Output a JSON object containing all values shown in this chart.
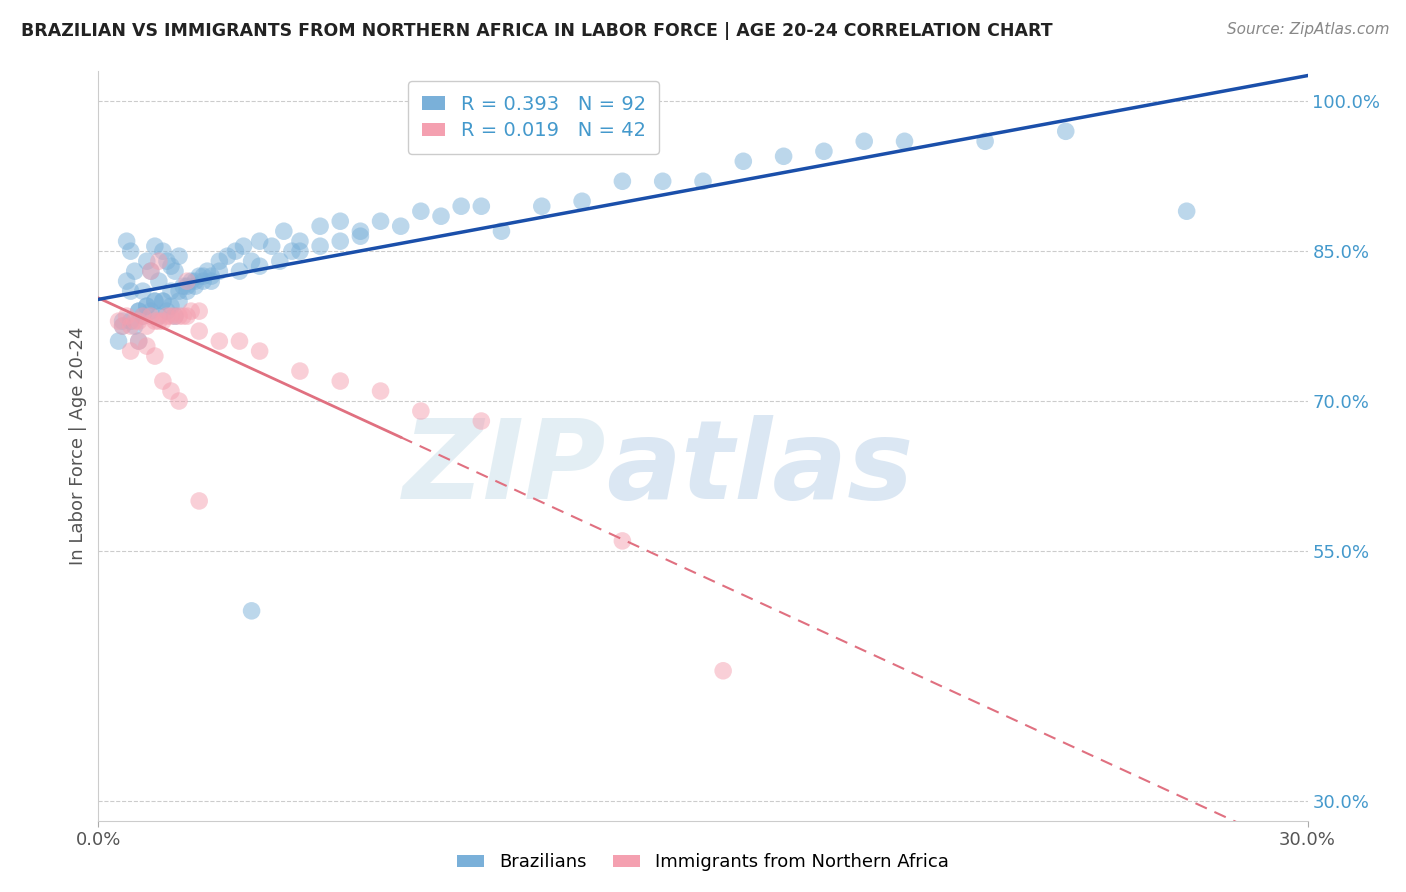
{
  "title": "BRAZILIAN VS IMMIGRANTS FROM NORTHERN AFRICA IN LABOR FORCE | AGE 20-24 CORRELATION CHART",
  "source": "Source: ZipAtlas.com",
  "ylabel": "In Labor Force | Age 20-24",
  "xmin": 0.0,
  "xmax": 0.3,
  "ymin": 0.28,
  "ymax": 1.03,
  "right_yticks": [
    1.0,
    0.85,
    0.7,
    0.55,
    0.3
  ],
  "right_yticklabels": [
    "100.0%",
    "85.0%",
    "70.0%",
    "55.0%",
    "30.0%"
  ],
  "blue_R": 0.393,
  "blue_N": 92,
  "pink_R": 0.019,
  "pink_N": 42,
  "blue_color": "#7ab0d9",
  "pink_color": "#f4a0b0",
  "blue_line_color": "#1a4faa",
  "pink_line_color": "#e07080",
  "legend_label_blue": "Brazilians",
  "legend_label_pink": "Immigrants from Northern Africa",
  "blue_scatter_x": [
    0.005,
    0.006,
    0.007,
    0.007,
    0.008,
    0.008,
    0.009,
    0.009,
    0.01,
    0.01,
    0.011,
    0.011,
    0.012,
    0.012,
    0.013,
    0.013,
    0.014,
    0.014,
    0.015,
    0.015,
    0.016,
    0.016,
    0.017,
    0.017,
    0.018,
    0.018,
    0.019,
    0.019,
    0.02,
    0.02,
    0.021,
    0.022,
    0.023,
    0.024,
    0.025,
    0.026,
    0.027,
    0.028,
    0.03,
    0.032,
    0.034,
    0.036,
    0.038,
    0.04,
    0.043,
    0.046,
    0.05,
    0.055,
    0.06,
    0.065,
    0.07,
    0.075,
    0.08,
    0.085,
    0.09,
    0.095,
    0.1,
    0.11,
    0.12,
    0.13,
    0.14,
    0.15,
    0.16,
    0.17,
    0.18,
    0.19,
    0.2,
    0.22,
    0.24,
    0.27,
    0.006,
    0.008,
    0.01,
    0.012,
    0.014,
    0.016,
    0.018,
    0.02,
    0.022,
    0.024,
    0.026,
    0.028,
    0.03,
    0.035,
    0.04,
    0.045,
    0.05,
    0.055,
    0.06,
    0.065,
    0.038,
    0.048
  ],
  "blue_scatter_y": [
    0.76,
    0.78,
    0.82,
    0.86,
    0.81,
    0.85,
    0.775,
    0.83,
    0.76,
    0.79,
    0.785,
    0.81,
    0.795,
    0.84,
    0.79,
    0.83,
    0.8,
    0.855,
    0.785,
    0.82,
    0.8,
    0.85,
    0.79,
    0.84,
    0.795,
    0.835,
    0.785,
    0.83,
    0.8,
    0.845,
    0.815,
    0.81,
    0.82,
    0.815,
    0.825,
    0.82,
    0.83,
    0.82,
    0.84,
    0.845,
    0.85,
    0.855,
    0.84,
    0.86,
    0.855,
    0.87,
    0.86,
    0.875,
    0.88,
    0.87,
    0.88,
    0.875,
    0.89,
    0.885,
    0.895,
    0.895,
    0.87,
    0.895,
    0.9,
    0.92,
    0.92,
    0.92,
    0.94,
    0.945,
    0.95,
    0.96,
    0.96,
    0.96,
    0.97,
    0.89,
    0.775,
    0.78,
    0.79,
    0.795,
    0.8,
    0.8,
    0.81,
    0.81,
    0.815,
    0.82,
    0.825,
    0.825,
    0.83,
    0.83,
    0.835,
    0.84,
    0.85,
    0.855,
    0.86,
    0.865,
    0.49,
    0.85
  ],
  "pink_scatter_x": [
    0.005,
    0.006,
    0.007,
    0.008,
    0.009,
    0.01,
    0.011,
    0.012,
    0.013,
    0.014,
    0.015,
    0.016,
    0.017,
    0.018,
    0.019,
    0.02,
    0.021,
    0.022,
    0.023,
    0.025,
    0.008,
    0.01,
    0.012,
    0.014,
    0.016,
    0.018,
    0.02,
    0.013,
    0.015,
    0.022,
    0.025,
    0.03,
    0.035,
    0.04,
    0.05,
    0.06,
    0.07,
    0.08,
    0.095,
    0.13,
    0.025,
    0.155
  ],
  "pink_scatter_y": [
    0.78,
    0.775,
    0.785,
    0.775,
    0.78,
    0.78,
    0.785,
    0.775,
    0.785,
    0.78,
    0.78,
    0.78,
    0.785,
    0.785,
    0.785,
    0.785,
    0.785,
    0.785,
    0.79,
    0.79,
    0.75,
    0.76,
    0.755,
    0.745,
    0.72,
    0.71,
    0.7,
    0.83,
    0.84,
    0.82,
    0.77,
    0.76,
    0.76,
    0.75,
    0.73,
    0.72,
    0.71,
    0.69,
    0.68,
    0.56,
    0.6,
    0.43
  ]
}
